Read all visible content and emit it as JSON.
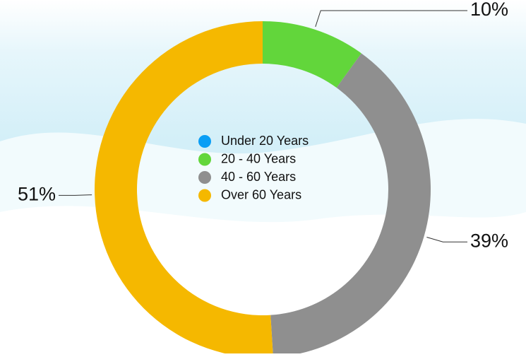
{
  "chart_data": {
    "type": "donut",
    "categories": [
      "Under 20 Years",
      "20 - 40 Years",
      "40 - 60 Years",
      "Over 60 Years"
    ],
    "values": [
      0,
      10,
      39,
      51
    ],
    "value_labels": [
      null,
      "10%",
      "39%",
      "51%"
    ],
    "colors": [
      "#0a9ef5",
      "#62d63b",
      "#8f8f8f",
      "#f5b800"
    ],
    "legend": "center"
  }
}
